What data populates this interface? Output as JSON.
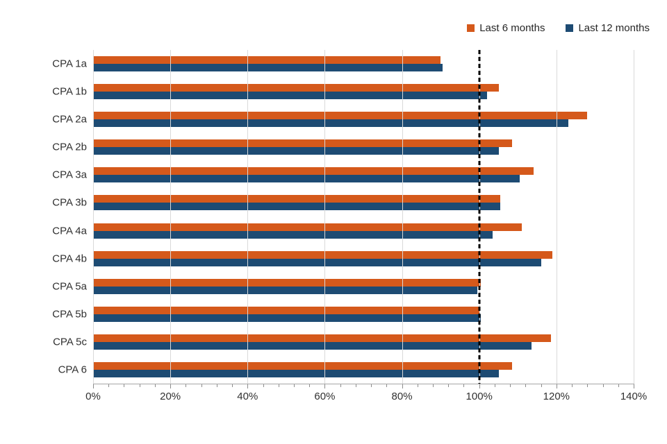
{
  "chart_data": {
    "type": "bar",
    "orientation": "horizontal",
    "title": "",
    "categories": [
      "CPA 1a",
      "CPA 1b",
      "CPA 2a",
      "CPA 2b",
      "CPA 3a",
      "CPA 3b",
      "CPA 4a",
      "CPA 4b",
      "CPA 5a",
      "CPA 5b",
      "CPA 5c",
      "CPA 6"
    ],
    "series": [
      {
        "name": "Last 6 months",
        "color": "#d5591b",
        "values": [
          90,
          105,
          128,
          108.5,
          114,
          105.5,
          111,
          119,
          100.5,
          100,
          118.5,
          108.5
        ]
      },
      {
        "name": "Last 12 months",
        "color": "#1d4b73",
        "values": [
          90.5,
          102,
          123,
          105,
          110.5,
          105.5,
          103.5,
          116,
          99.5,
          100.5,
          113.5,
          105
        ]
      }
    ],
    "x_axis": {
      "min": 0,
      "max": 140,
      "unit": "%",
      "major_tick_step": 20,
      "minor_tick_step": 4,
      "tick_labels": [
        "0%",
        "20%",
        "40%",
        "60%",
        "80%",
        "100%",
        "120%",
        "140%"
      ]
    },
    "reference_line": {
      "value": 100,
      "style": "dashed",
      "color": "#000000"
    },
    "legend_position": "top-right",
    "grid": true,
    "gridline_color": "#d9d9d9",
    "axis_line_color": "#a6a6a6"
  }
}
